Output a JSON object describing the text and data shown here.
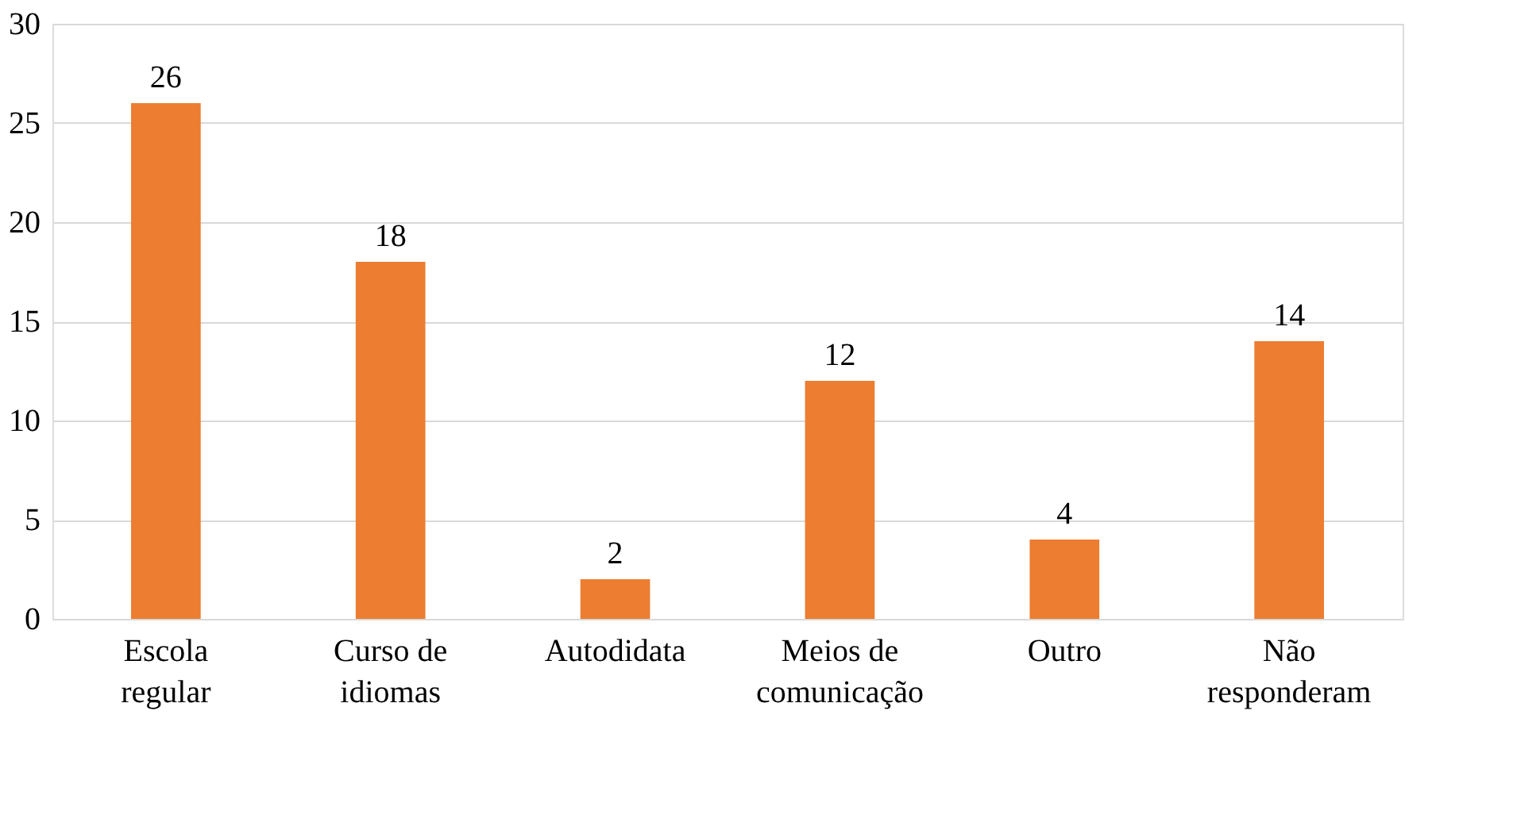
{
  "chart_data": {
    "type": "bar",
    "categories": [
      "Escola regular",
      "Curso de idiomas",
      "Autodidata",
      "Meios de comunicação",
      "Outro",
      "Não responderam"
    ],
    "values": [
      26,
      18,
      2,
      12,
      4,
      14
    ],
    "color": "#ed7d31",
    "ylim": [
      0,
      30
    ],
    "yticks": [
      0,
      5,
      10,
      15,
      20,
      25,
      30
    ],
    "grid": "y",
    "data_labels": true
  }
}
